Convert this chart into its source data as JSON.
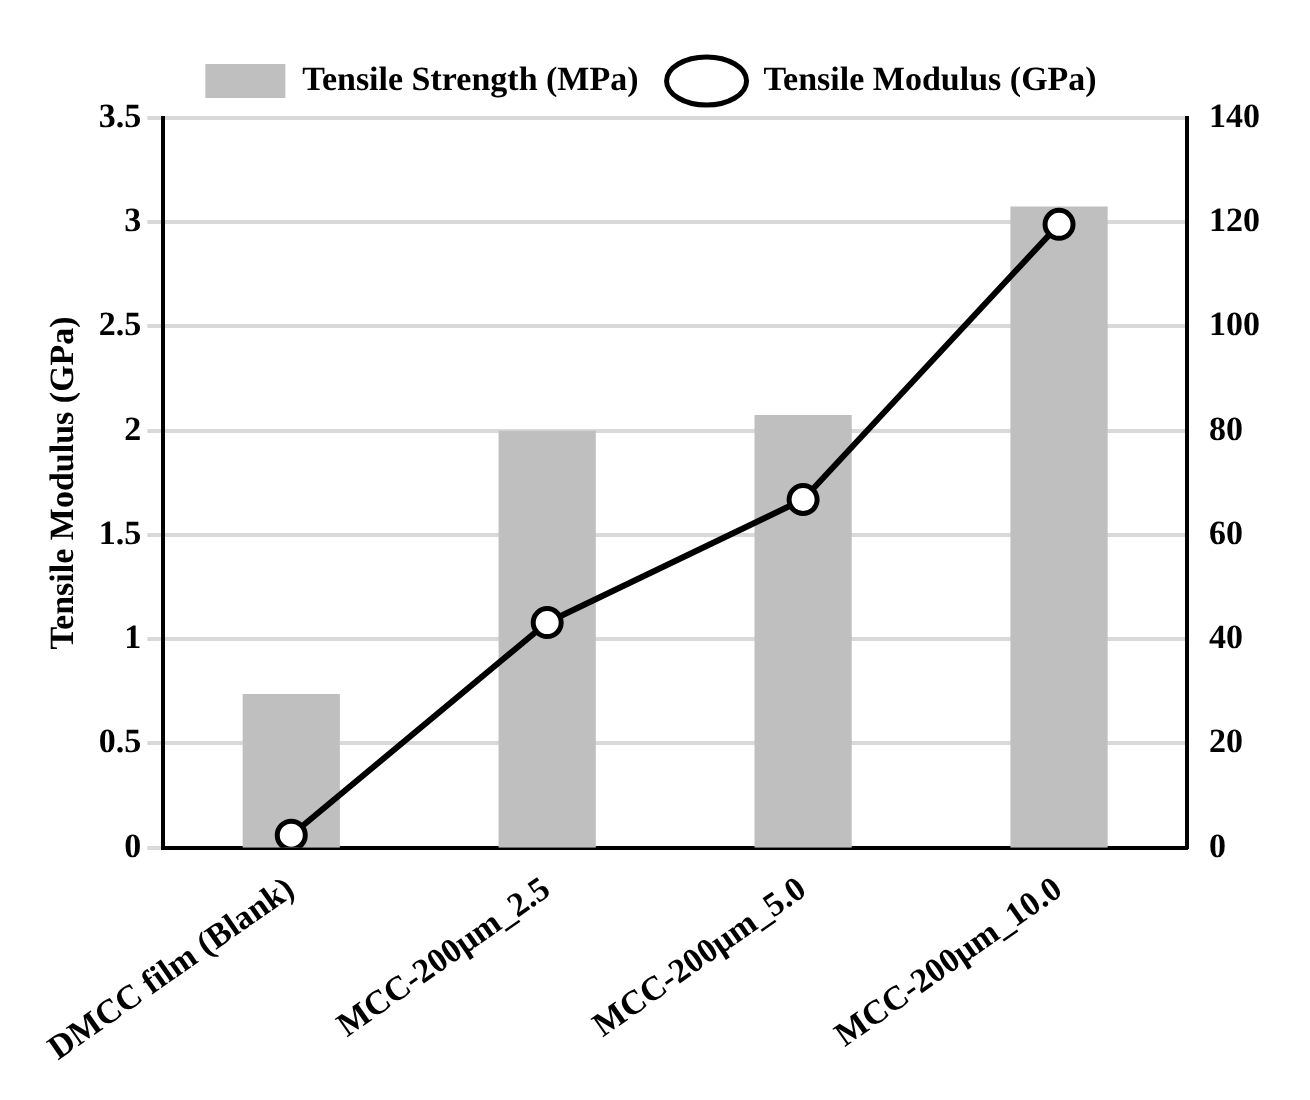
{
  "chart_data": {
    "type": "bar",
    "categories": [
      "DMCC film (Blank)",
      "MCC-200μm_2.5",
      "MCC-200μm_5.0",
      "MCC-200μm_10.0"
    ],
    "ylabel": "Tensile Modulus (GPa)",
    "series": [
      {
        "name": "Tensile Strength (MPa)",
        "axis": "y2",
        "color": "#bfbfbf",
        "values": [
          29.5,
          80,
          83,
          123
        ]
      },
      {
        "name": "Tensile Modulus (GPa)",
        "type": "line",
        "color": "#000000",
        "values": [
          0.06,
          1.08,
          1.67,
          2.99
        ]
      }
    ],
    "ylim": [
      0,
      3.5
    ],
    "yticks": [
      0,
      0.5,
      1,
      1.5,
      2,
      2.5,
      3,
      3.5
    ],
    "y2lim": [
      0,
      140
    ],
    "y2ticks": [
      0,
      20,
      40,
      60,
      80,
      100,
      120,
      140
    ],
    "grid": "y",
    "legend": "top",
    "marker": "circle"
  }
}
